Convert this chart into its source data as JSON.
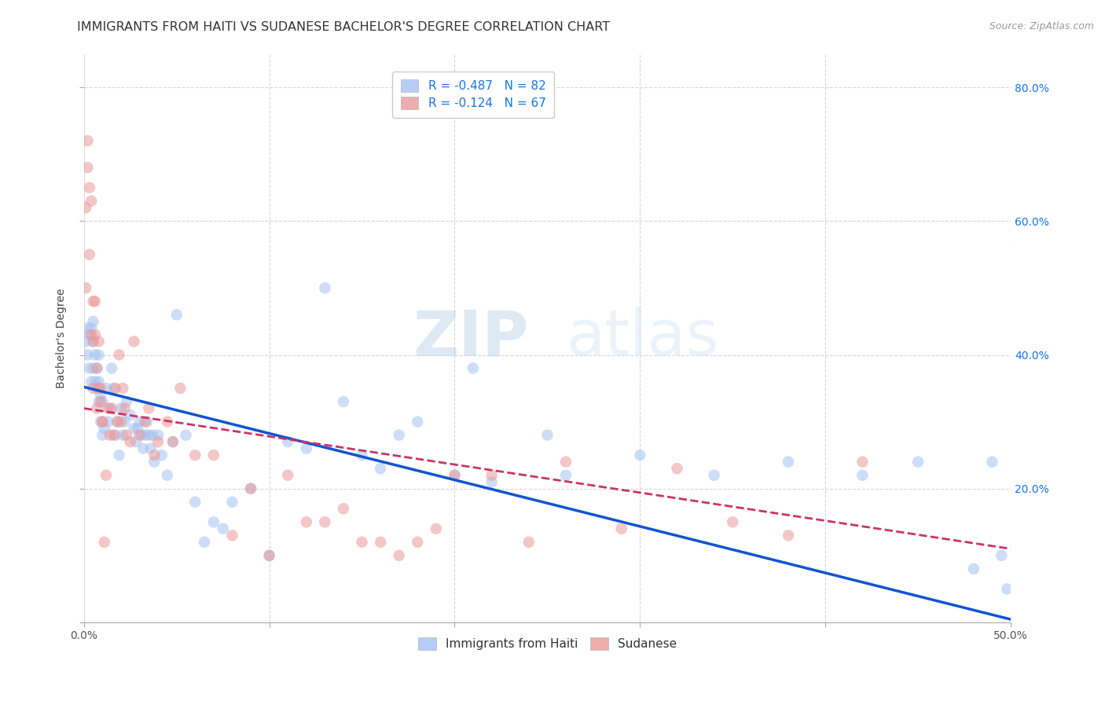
{
  "title": "IMMIGRANTS FROM HAITI VS SUDANESE BACHELOR'S DEGREE CORRELATION CHART",
  "source": "Source: ZipAtlas.com",
  "ylabel": "Bachelor's Degree",
  "xlim": [
    0.0,
    0.5
  ],
  "ylim": [
    0.0,
    0.85
  ],
  "xticks": [
    0.0,
    0.1,
    0.2,
    0.3,
    0.4,
    0.5
  ],
  "yticks": [
    0.0,
    0.2,
    0.4,
    0.6,
    0.8
  ],
  "ytick_labels": [
    "",
    "20.0%",
    "40.0%",
    "60.0%",
    "80.0%"
  ],
  "legend_blue_label": "R = -0.487   N = 82",
  "legend_pink_label": "R = -0.124   N = 67",
  "legend_bottom_blue": "Immigrants from Haiti",
  "legend_bottom_pink": "Sudanese",
  "blue_color": "#a4c2f4",
  "pink_color": "#ea9999",
  "blue_line_color": "#1155cc",
  "pink_line_color": "#cc3366",
  "watermark_zip": "ZIP",
  "watermark_atlas": "atlas",
  "title_fontsize": 11.5,
  "tick_fontsize": 10,
  "blue_x": [
    0.001,
    0.002,
    0.002,
    0.003,
    0.003,
    0.004,
    0.004,
    0.005,
    0.005,
    0.005,
    0.006,
    0.006,
    0.007,
    0.007,
    0.008,
    0.008,
    0.008,
    0.009,
    0.009,
    0.01,
    0.01,
    0.011,
    0.012,
    0.013,
    0.014,
    0.015,
    0.016,
    0.017,
    0.018,
    0.019,
    0.02,
    0.021,
    0.022,
    0.023,
    0.025,
    0.027,
    0.028,
    0.029,
    0.03,
    0.031,
    0.032,
    0.033,
    0.034,
    0.035,
    0.036,
    0.037,
    0.038,
    0.04,
    0.042,
    0.045,
    0.048,
    0.05,
    0.055,
    0.06,
    0.065,
    0.07,
    0.075,
    0.08,
    0.09,
    0.1,
    0.11,
    0.12,
    0.13,
    0.14,
    0.15,
    0.16,
    0.17,
    0.18,
    0.2,
    0.21,
    0.22,
    0.25,
    0.26,
    0.3,
    0.34,
    0.38,
    0.42,
    0.45,
    0.48,
    0.49,
    0.495,
    0.498
  ],
  "blue_y": [
    0.42,
    0.4,
    0.44,
    0.38,
    0.43,
    0.36,
    0.44,
    0.38,
    0.42,
    0.45,
    0.36,
    0.4,
    0.35,
    0.38,
    0.33,
    0.36,
    0.4,
    0.3,
    0.34,
    0.28,
    0.33,
    0.29,
    0.35,
    0.3,
    0.32,
    0.38,
    0.35,
    0.28,
    0.3,
    0.25,
    0.32,
    0.28,
    0.3,
    0.33,
    0.31,
    0.29,
    0.27,
    0.29,
    0.3,
    0.28,
    0.26,
    0.28,
    0.3,
    0.28,
    0.26,
    0.28,
    0.24,
    0.28,
    0.25,
    0.22,
    0.27,
    0.46,
    0.28,
    0.18,
    0.12,
    0.15,
    0.14,
    0.18,
    0.2,
    0.1,
    0.27,
    0.26,
    0.5,
    0.33,
    0.25,
    0.23,
    0.28,
    0.3,
    0.22,
    0.38,
    0.21,
    0.28,
    0.22,
    0.25,
    0.22,
    0.24,
    0.22,
    0.24,
    0.08,
    0.24,
    0.1,
    0.05
  ],
  "pink_x": [
    0.001,
    0.001,
    0.002,
    0.002,
    0.003,
    0.003,
    0.004,
    0.004,
    0.005,
    0.005,
    0.005,
    0.006,
    0.006,
    0.007,
    0.007,
    0.008,
    0.008,
    0.009,
    0.009,
    0.01,
    0.01,
    0.011,
    0.012,
    0.013,
    0.014,
    0.015,
    0.016,
    0.017,
    0.018,
    0.019,
    0.02,
    0.021,
    0.022,
    0.023,
    0.025,
    0.027,
    0.03,
    0.033,
    0.035,
    0.038,
    0.04,
    0.045,
    0.048,
    0.052,
    0.06,
    0.07,
    0.08,
    0.09,
    0.1,
    0.11,
    0.12,
    0.13,
    0.14,
    0.15,
    0.16,
    0.17,
    0.18,
    0.19,
    0.2,
    0.22,
    0.24,
    0.26,
    0.29,
    0.32,
    0.35,
    0.38,
    0.42
  ],
  "pink_y": [
    0.5,
    0.62,
    0.68,
    0.72,
    0.55,
    0.65,
    0.63,
    0.43,
    0.48,
    0.42,
    0.35,
    0.43,
    0.48,
    0.38,
    0.32,
    0.35,
    0.42,
    0.33,
    0.35,
    0.3,
    0.3,
    0.12,
    0.22,
    0.32,
    0.28,
    0.32,
    0.28,
    0.35,
    0.3,
    0.4,
    0.3,
    0.35,
    0.32,
    0.28,
    0.27,
    0.42,
    0.28,
    0.3,
    0.32,
    0.25,
    0.27,
    0.3,
    0.27,
    0.35,
    0.25,
    0.25,
    0.13,
    0.2,
    0.1,
    0.22,
    0.15,
    0.15,
    0.17,
    0.12,
    0.12,
    0.1,
    0.12,
    0.14,
    0.22,
    0.22,
    0.12,
    0.24,
    0.14,
    0.23,
    0.15,
    0.13,
    0.24
  ],
  "blue_intercept": 0.352,
  "blue_slope": -0.695,
  "pink_intercept": 0.32,
  "pink_slope": -0.42
}
